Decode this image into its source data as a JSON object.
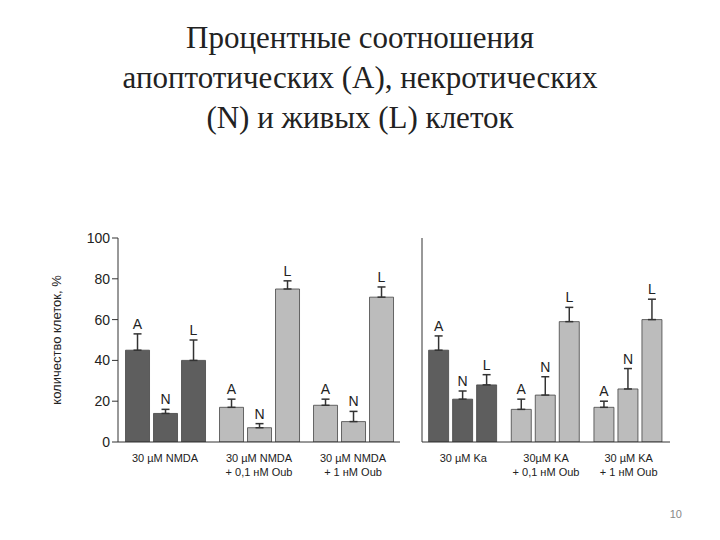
{
  "title": "Процентные соотношения\nапоптотических (A), некротических\n(N) и живых (L) клеток",
  "page_number": "10",
  "chart_data": [
    {
      "type": "bar",
      "y_label": "количество клеток, %",
      "categories": [
        "30 µM NMDA",
        "30 µM NMDA\n+ 0,1 нМ Oub",
        "30 µM NMDA\n+ 1 нМ Oub"
      ],
      "ylim": [
        0,
        100
      ],
      "yticks": [
        0,
        20,
        40,
        60,
        80,
        100
      ],
      "grid": false,
      "series": [
        {
          "name": "A",
          "colors": [
            "#5e5e5e",
            "#bcbcbc",
            "#bcbcbc"
          ],
          "values": [
            45,
            17,
            18
          ],
          "errors": [
            8,
            4,
            3
          ]
        },
        {
          "name": "N",
          "colors": [
            "#5e5e5e",
            "#bcbcbc",
            "#bcbcbc"
          ],
          "values": [
            14,
            7,
            10
          ],
          "errors": [
            2,
            2,
            5
          ]
        },
        {
          "name": "L",
          "colors": [
            "#5e5e5e",
            "#bcbcbc",
            "#bcbcbc"
          ],
          "values": [
            40,
            75,
            71
          ],
          "errors": [
            10,
            4,
            5
          ]
        }
      ]
    },
    {
      "type": "bar",
      "categories": [
        "30 µM Ka",
        "30µM KA\n+ 0,1 нМ Oub",
        "30 µM KA\n+ 1 нМ Oub"
      ],
      "ylim": [
        0,
        100
      ],
      "yticks": [
        0,
        20,
        40,
        60,
        80,
        100
      ],
      "grid": false,
      "tick_labels": "x",
      "series": [
        {
          "name": "A",
          "colors": [
            "#5e5e5e",
            "#bcbcbc",
            "#bcbcbc"
          ],
          "values": [
            45,
            16,
            17
          ],
          "errors": [
            7,
            5,
            3
          ]
        },
        {
          "name": "N",
          "colors": [
            "#5e5e5e",
            "#bcbcbc",
            "#bcbcbc"
          ],
          "values": [
            21,
            23,
            26
          ],
          "errors": [
            4,
            9,
            10
          ]
        },
        {
          "name": "L",
          "colors": [
            "#5e5e5e",
            "#bcbcbc",
            "#bcbcbc"
          ],
          "values": [
            28,
            59,
            60
          ],
          "errors": [
            5,
            7,
            10
          ]
        }
      ]
    }
  ]
}
